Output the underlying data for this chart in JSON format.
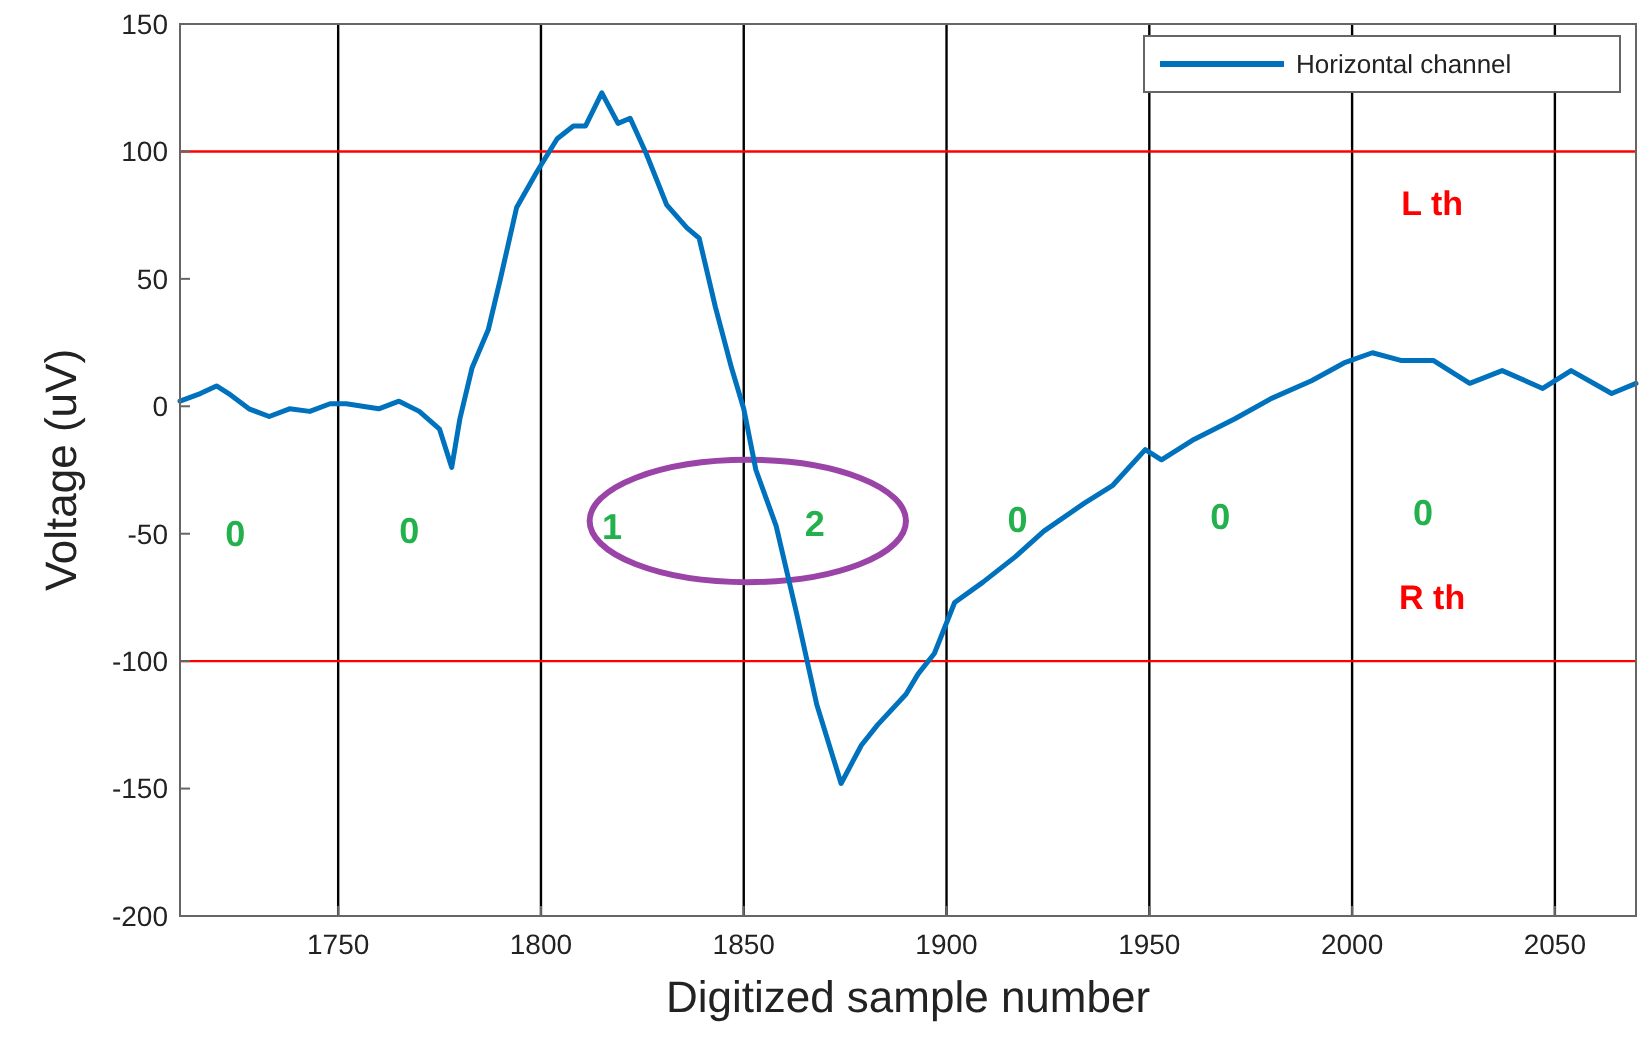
{
  "chart_data": {
    "type": "line",
    "xlabel": "Digitized sample number",
    "ylabel": "Voltage (uV)",
    "xlim": [
      1711,
      2070
    ],
    "xticks": [
      1750,
      1800,
      1850,
      1900,
      1950,
      2000,
      2050
    ],
    "ylim": [
      -200,
      150
    ],
    "yticks": [
      -200,
      -150,
      -100,
      -50,
      0,
      50,
      100,
      150
    ],
    "grid": "x",
    "legend": "top right",
    "line_style": "solid",
    "x": [
      1711,
      1716,
      1720,
      1723,
      1728,
      1733,
      1738,
      1743,
      1748,
      1752,
      1760,
      1765,
      1770,
      1775,
      1778,
      1780,
      1783,
      1787,
      1790,
      1794,
      1799,
      1804,
      1808,
      1811,
      1815,
      1819,
      1822,
      1826,
      1831,
      1836,
      1839,
      1843,
      1847,
      1850,
      1853,
      1858,
      1863,
      1868,
      1874,
      1879,
      1883,
      1890,
      1893,
      1897,
      1902,
      1909,
      1917,
      1924,
      1934,
      1941,
      1949,
      1953,
      1961,
      1971,
      1980,
      1990,
      1998,
      2005,
      2012,
      2020,
      2029,
      2037,
      2047,
      2054,
      2064,
      2070
    ],
    "series": [
      {
        "name": "Horizontal channel",
        "color": "#0072bd",
        "values": [
          2,
          5,
          8,
          5,
          -1,
          -4,
          -1,
          -2,
          1,
          1,
          -1,
          2,
          -2,
          -9,
          -24,
          -5,
          15,
          30,
          50,
          78,
          92,
          105,
          110,
          110,
          123,
          111,
          113,
          99,
          79,
          70,
          66,
          39,
          15,
          -1,
          -25,
          -47,
          -81,
          -117,
          -148,
          -133,
          -125,
          -113,
          -105,
          -97,
          -77,
          -69,
          -59,
          -49,
          -38,
          -31,
          -17,
          -21,
          -13,
          -5,
          3,
          10,
          17,
          21,
          18,
          18,
          9,
          14,
          7,
          14,
          5,
          9
        ]
      }
    ],
    "ref_lines": [
      {
        "axis": "y",
        "value": 100,
        "label": "L th",
        "color": "#ff0000"
      },
      {
        "axis": "y",
        "value": -100,
        "label": "R th",
        "color": "#ff0000"
      }
    ],
    "annotations": [
      "0",
      "0",
      "1",
      "2",
      "0",
      "0",
      "0"
    ]
  }
}
